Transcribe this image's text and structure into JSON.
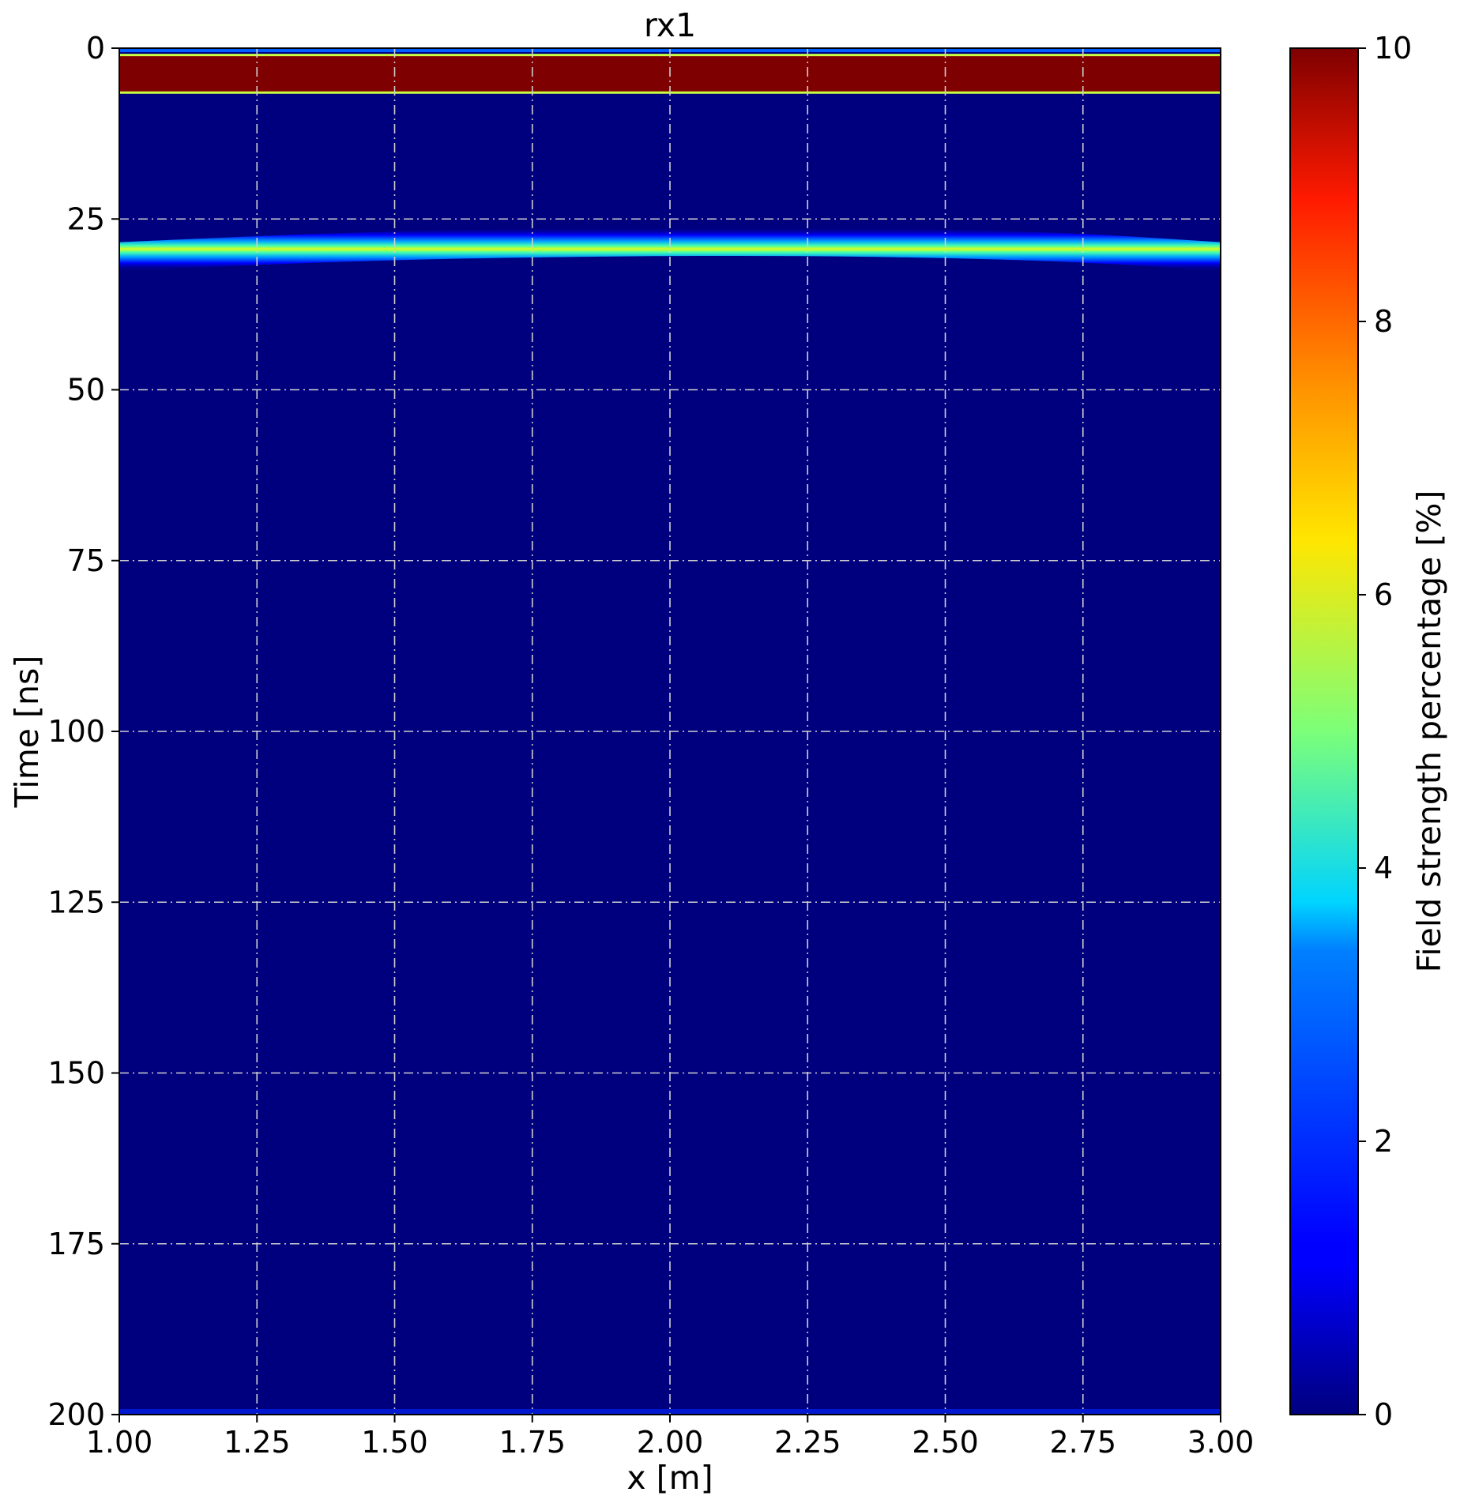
{
  "chart_data": {
    "type": "heatmap",
    "title": "rx1",
    "xlabel": "x [m]",
    "ylabel": "Time [ns]",
    "xlim": [
      1.0,
      3.0
    ],
    "ylim": [
      200,
      0
    ],
    "y_inverted": true,
    "xticks": [
      "1.00",
      "1.25",
      "1.50",
      "1.75",
      "2.00",
      "2.25",
      "2.50",
      "2.75",
      "3.00"
    ],
    "xtick_values": [
      1.0,
      1.25,
      1.5,
      1.75,
      2.0,
      2.25,
      2.5,
      2.75,
      3.0
    ],
    "yticks": [
      "0",
      "25",
      "50",
      "75",
      "100",
      "125",
      "150",
      "175",
      "200"
    ],
    "ytick_values": [
      0,
      25,
      50,
      75,
      100,
      125,
      150,
      175,
      200
    ],
    "grid": true,
    "colormap": "jet",
    "colorbar": {
      "label": "Field strength percentage [%]",
      "range": [
        0,
        10
      ],
      "ticks": [
        "0",
        "2",
        "4",
        "6",
        "8",
        "10"
      ],
      "tick_values": [
        0,
        2,
        4,
        6,
        8,
        10
      ]
    },
    "background_value": 0,
    "direct_wave": {
      "time_start": 1.0,
      "time_end": 6.5,
      "value": 10
    },
    "reflection_hyperbola": {
      "apex_x": 2.1,
      "apex_time": 28.3,
      "points": [
        {
          "x": 1.0,
          "time": 30.5
        },
        {
          "x": 1.25,
          "time": 29.6
        },
        {
          "x": 1.5,
          "time": 28.9
        },
        {
          "x": 1.75,
          "time": 28.5
        },
        {
          "x": 2.0,
          "time": 28.3
        },
        {
          "x": 2.25,
          "time": 28.3
        },
        {
          "x": 2.5,
          "time": 28.6
        },
        {
          "x": 2.75,
          "time": 29.2
        },
        {
          "x": 3.0,
          "time": 30.5
        }
      ],
      "peak_value": 6
    }
  }
}
